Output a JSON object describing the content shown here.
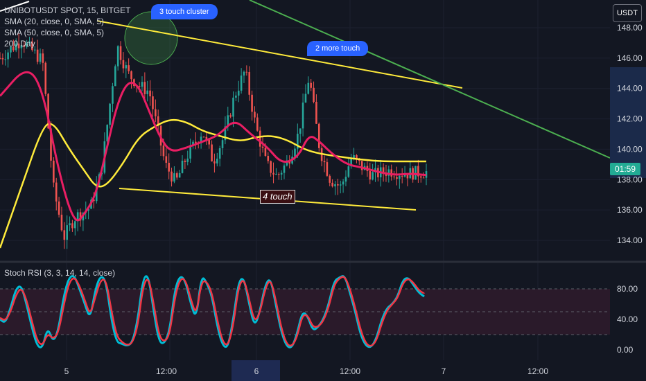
{
  "legend": {
    "symbol": "UNIBOTUSDT SPOT, 15, BITGET",
    "sma20": "SMA (20, close, 0, SMA, 5)",
    "sma50": "SMA (50, close, 0, SMA, 5)",
    "day200": "200 Day"
  },
  "annotations": {
    "cluster": "3 touch cluster",
    "more": "2 more touch",
    "bottom": "4 touch"
  },
  "currency_button": "USDT",
  "countdown": "01:59",
  "rsi_legend": "Stoch RSI (3, 3, 14, 14, close)",
  "colors": {
    "background": "#131722",
    "up": "#26a69a",
    "down": "#ef5350",
    "sma_fast": "#e91e63",
    "sma_slow": "#ffeb3b",
    "trend_green": "#4caf50",
    "trend_yellow": "#ffeb3b",
    "rsi_k": "#00bcd4",
    "rsi_d": "#f23645",
    "rsi_band": "#2a1a2a",
    "bubble": "#2962ff",
    "timer": "#22ab94"
  },
  "chart_data": [
    {
      "type": "candlestick",
      "title": "UNIBOTUSDT SPOT, 15, BITGET",
      "y_ticks": [
        "148.00",
        "146.00",
        "144.00",
        "142.00",
        "140.00",
        "138.00",
        "136.00",
        "134.00"
      ],
      "ylim": [
        132.5,
        149.0
      ],
      "x_ticks": [
        "5",
        "12:00",
        "6",
        "12:00",
        "7",
        "12:00"
      ],
      "price_path": [
        [
          0,
          146.0
        ],
        [
          4,
          147.2
        ],
        [
          8,
          145.8
        ],
        [
          10,
          137.5
        ],
        [
          12,
          134.2
        ],
        [
          14,
          135.5
        ],
        [
          17,
          136.2
        ],
        [
          19,
          138.5
        ],
        [
          22,
          146.8
        ],
        [
          24,
          145.0
        ],
        [
          26,
          144.2
        ],
        [
          28,
          143.8
        ],
        [
          31,
          139.0
        ],
        [
          33,
          137.8
        ],
        [
          35,
          139.5
        ],
        [
          38,
          141.2
        ],
        [
          40,
          139.2
        ],
        [
          42,
          140.8
        ],
        [
          44,
          143.5
        ],
        [
          46,
          145.2
        ],
        [
          48,
          141.5
        ],
        [
          50,
          139.0
        ],
        [
          52,
          138.2
        ],
        [
          54,
          139.2
        ],
        [
          56,
          141.0
        ],
        [
          58,
          144.8
        ],
        [
          60,
          140.0
        ],
        [
          62,
          138.0
        ],
        [
          64,
          137.5
        ],
        [
          66,
          139.5
        ],
        [
          68,
          138.8
        ],
        [
          70,
          138.3
        ],
        [
          73,
          138.6
        ],
        [
          76,
          138.4
        ],
        [
          80,
          138.5
        ]
      ],
      "sma_fast": [
        [
          0,
          143.5
        ],
        [
          5,
          145.5
        ],
        [
          8,
          144.0
        ],
        [
          11,
          138.5
        ],
        [
          14,
          135.0
        ],
        [
          16,
          135.8
        ],
        [
          18,
          137.0
        ],
        [
          20,
          140.0
        ],
        [
          22,
          143.0
        ],
        [
          24,
          144.5
        ],
        [
          26,
          144.2
        ],
        [
          28,
          142.5
        ],
        [
          30,
          140.8
        ],
        [
          32,
          139.8
        ],
        [
          35,
          140.1
        ],
        [
          38,
          140.5
        ],
        [
          41,
          140.9
        ],
        [
          44,
          142.0
        ],
        [
          47,
          141.0
        ],
        [
          50,
          140.2
        ],
        [
          53,
          139.0
        ],
        [
          56,
          139.5
        ],
        [
          58,
          141.0
        ],
        [
          60,
          140.5
        ],
        [
          62,
          139.8
        ],
        [
          65,
          139.0
        ],
        [
          68,
          138.8
        ],
        [
          71,
          138.5
        ],
        [
          74,
          138.3
        ],
        [
          77,
          138.4
        ],
        [
          80,
          138.3
        ]
      ],
      "sma_slow": [
        [
          0,
          133.5
        ],
        [
          4,
          137.5
        ],
        [
          8,
          141.5
        ],
        [
          10,
          141.8
        ],
        [
          13,
          140.0
        ],
        [
          16,
          138.5
        ],
        [
          18,
          137.5
        ],
        [
          20,
          137.6
        ],
        [
          23,
          139.0
        ],
        [
          26,
          140.8
        ],
        [
          29,
          141.5
        ],
        [
          32,
          142.0
        ],
        [
          35,
          141.8
        ],
        [
          38,
          141.2
        ],
        [
          41,
          140.9
        ],
        [
          45,
          140.5
        ],
        [
          48,
          140.8
        ],
        [
          51,
          140.9
        ],
        [
          54,
          140.6
        ],
        [
          57,
          140.0
        ],
        [
          60,
          139.7
        ],
        [
          64,
          139.5
        ],
        [
          68,
          139.3
        ],
        [
          72,
          139.2
        ],
        [
          76,
          139.2
        ],
        [
          80,
          139.2
        ]
      ],
      "trendlines": [
        {
          "color": "yellow",
          "from": [
            17,
            148.2
          ],
          "to": [
            80,
            144.0
          ]
        },
        {
          "color": "yellow",
          "from": [
            19,
            137.2
          ],
          "to": [
            68,
            136.0
          ]
        },
        {
          "color": "green",
          "from": [
            43,
            149.5
          ],
          "to": [
            80,
            140.0
          ]
        }
      ]
    },
    {
      "type": "line",
      "title": "Stoch RSI (3, 3, 14, 14, close)",
      "y_ticks": [
        "80.00",
        "40.00",
        "0.00"
      ],
      "ylim": [
        -5,
        105
      ],
      "band": [
        20,
        80
      ],
      "series": [
        {
          "id": "k",
          "values": [
            40,
            35,
            55,
            80,
            85,
            60,
            30,
            5,
            2,
            30,
            10,
            25,
            70,
            95,
            98,
            80,
            60,
            40,
            80,
            98,
            90,
            40,
            10,
            8,
            5,
            10,
            40,
            95,
            98,
            50,
            10,
            8,
            25,
            80,
            98,
            90,
            60,
            40,
            98,
            88,
            70,
            30,
            5,
            3,
            40,
            90,
            95,
            60,
            30,
            50,
            85,
            95,
            60,
            25,
            5,
            2,
            20,
            50,
            45,
            25,
            30,
            40,
            60,
            90,
            95,
            98,
            75,
            50,
            20,
            5,
            3,
            15,
            40,
            55,
            60,
            70,
            92,
            95,
            85,
            75,
            70
          ]
        },
        {
          "id": "d",
          "values": [
            42,
            38,
            50,
            72,
            82,
            66,
            38,
            12,
            5,
            22,
            14,
            22,
            58,
            88,
            96,
            84,
            65,
            45,
            70,
            92,
            92,
            52,
            18,
            10,
            6,
            9,
            32,
            85,
            96,
            60,
            18,
            10,
            20,
            70,
            94,
            92,
            66,
            45,
            90,
            90,
            74,
            38,
            10,
            5,
            32,
            84,
            94,
            66,
            36,
            48,
            80,
            94,
            66,
            30,
            8,
            4,
            16,
            45,
            46,
            30,
            30,
            38,
            56,
            85,
            94,
            97,
            80,
            55,
            26,
            8,
            4,
            12,
            35,
            52,
            60,
            68,
            88,
            94,
            88,
            78,
            74
          ]
        }
      ]
    }
  ]
}
